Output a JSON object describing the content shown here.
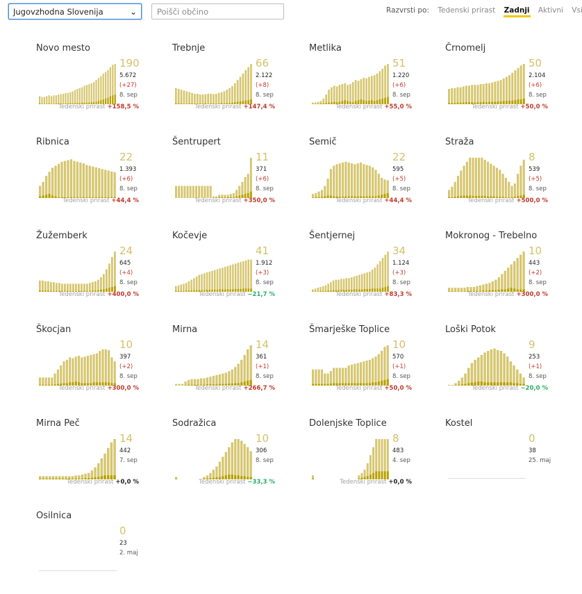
{
  "controls": {
    "region_value": "Jugovzhodna Slovenija",
    "search_placeholder": "Poišči občino",
    "sort_label": "Razvrsti po:",
    "sort_options": [
      "Tedenski prirast",
      "Zadnji",
      "Aktivni",
      "Vsi"
    ],
    "sort_active": "Zadnji"
  },
  "footer_label": "Tedenski prirast",
  "colors": {
    "bar_light": "#d6c66f",
    "bar_dark": "#b8a000",
    "number": "#d4c06a",
    "increase": "#c0392b",
    "decrease": "#27ae60"
  },
  "municipalities": [
    {
      "name": "Novo mesto",
      "active": "190",
      "total": "5.672",
      "diff": "(+27)",
      "date": "8. sep",
      "weekly": "+158,5 %",
      "trend": "up",
      "bars": [
        20,
        18,
        18,
        20,
        22,
        20,
        22,
        22,
        24,
        25,
        26,
        28,
        28,
        30,
        32,
        35,
        38,
        40,
        42,
        46,
        48,
        50,
        52,
        55,
        60,
        65,
        70,
        76,
        80,
        85,
        92,
        98,
        100
      ],
      "dark": [
        2,
        1,
        1,
        1,
        2,
        1,
        1,
        2,
        2,
        2,
        1,
        2,
        2,
        3,
        2,
        3,
        3,
        3,
        4,
        3,
        4,
        4,
        5,
        5,
        6,
        8,
        10,
        12,
        14,
        16,
        20,
        22,
        24
      ]
    },
    {
      "name": "Trebnje",
      "active": "66",
      "total": "2.122",
      "diff": "(+8)",
      "date": "8. sep",
      "weekly": "+147,4 %",
      "trend": "up",
      "bars": [
        40,
        38,
        36,
        34,
        32,
        30,
        28,
        26,
        26,
        24,
        24,
        25,
        26,
        26,
        25,
        26,
        28,
        30,
        32,
        36,
        40,
        45,
        52,
        60,
        68,
        76,
        85,
        92,
        100
      ],
      "dark": [
        2,
        2,
        2,
        1,
        1,
        2,
        2,
        1,
        1,
        2,
        1,
        2,
        1,
        2,
        2,
        1,
        2,
        3,
        2,
        3,
        3,
        4,
        5,
        6,
        7,
        8,
        9,
        10,
        12
      ]
    },
    {
      "name": "Metlika",
      "active": "51",
      "total": "1.220",
      "diff": "(+6)",
      "date": "8. sep",
      "weekly": "+55,0 %",
      "trend": "up",
      "bars": [
        4,
        4,
        6,
        8,
        14,
        24,
        36,
        42,
        46,
        44,
        48,
        50,
        52,
        48,
        50,
        55,
        60,
        58,
        62,
        66,
        64,
        68,
        70,
        72,
        76,
        82,
        88,
        96,
        100
      ],
      "dark": [
        1,
        1,
        1,
        2,
        2,
        3,
        4,
        5,
        6,
        5,
        6,
        8,
        10,
        8,
        6,
        5,
        8,
        10,
        12,
        10,
        8,
        9,
        10,
        8,
        10,
        12,
        14,
        16,
        18
      ]
    },
    {
      "name": "Črnomelj",
      "active": "50",
      "total": "2.104",
      "diff": "(+6)",
      "date": "8. sep",
      "weekly": "+50,0 %",
      "trend": "up",
      "bars": [
        38,
        40,
        40,
        42,
        42,
        44,
        46,
        46,
        48,
        48,
        48,
        50,
        50,
        52,
        52,
        54,
        56,
        58,
        60,
        64,
        68,
        72,
        78,
        84,
        90,
        96,
        100
      ],
      "dark": [
        3,
        3,
        3,
        4,
        4,
        4,
        5,
        5,
        5,
        4,
        5,
        5,
        6,
        5,
        6,
        6,
        6,
        7,
        7,
        8,
        8,
        9,
        9,
        10,
        12,
        12,
        14
      ]
    },
    {
      "name": "Ribnica",
      "active": "22",
      "total": "1.393",
      "diff": "(+6)",
      "date": "8. sep",
      "weekly": "+44,4 %",
      "trend": "up",
      "bars": [
        30,
        40,
        55,
        65,
        75,
        80,
        85,
        90,
        92,
        94,
        96,
        92,
        90,
        88,
        86,
        82,
        80,
        78,
        76,
        74,
        72,
        70,
        68,
        66,
        64
      ],
      "dark": [
        4,
        6,
        8,
        10,
        6,
        4,
        2,
        2,
        2,
        2,
        2,
        2,
        2,
        2,
        2,
        2,
        2,
        2,
        2,
        2,
        2,
        2,
        2,
        2,
        2
      ]
    },
    {
      "name": "Šentrupert",
      "active": "11",
      "total": "371",
      "diff": "(+6)",
      "date": "8. sep",
      "weekly": "+350,0 %",
      "trend": "up",
      "bars": [
        30,
        30,
        30,
        30,
        30,
        30,
        30,
        30,
        30,
        30,
        30,
        30,
        30,
        4,
        4,
        8,
        8,
        8,
        8,
        10,
        12,
        20,
        30,
        40,
        52,
        60,
        100
      ],
      "dark": [
        0,
        0,
        0,
        0,
        0,
        0,
        0,
        0,
        0,
        0,
        0,
        0,
        0,
        1,
        1,
        2,
        2,
        2,
        2,
        2,
        2,
        4,
        6,
        8,
        10,
        12,
        16
      ]
    },
    {
      "name": "Semič",
      "active": "22",
      "total": "595",
      "diff": "(+5)",
      "date": "8. sep",
      "weekly": "+44,4 %",
      "trend": "up",
      "bars": [
        10,
        12,
        16,
        20,
        30,
        48,
        72,
        80,
        84,
        86,
        88,
        90,
        88,
        86,
        84,
        86,
        88,
        84,
        82,
        80,
        76,
        70,
        60,
        50,
        46,
        44
      ],
      "dark": [
        1,
        2,
        2,
        3,
        4,
        6,
        6,
        4,
        4,
        3,
        3,
        4,
        4,
        4,
        4,
        4,
        4,
        4,
        4,
        4,
        4,
        4,
        6,
        8,
        10,
        12
      ]
    },
    {
      "name": "Straža",
      "active": "8",
      "total": "539",
      "diff": "(+5)",
      "date": "8. sep",
      "weekly": "+500,0 %",
      "trend": "up",
      "bars": [
        20,
        28,
        40,
        55,
        68,
        80,
        90,
        100,
        100,
        100,
        100,
        100,
        95,
        90,
        85,
        80,
        75,
        70,
        60,
        50,
        40,
        30,
        36,
        60,
        80,
        95
      ],
      "dark": [
        2,
        2,
        3,
        4,
        5,
        6,
        6,
        6,
        5,
        5,
        5,
        5,
        5,
        4,
        4,
        4,
        3,
        3,
        3,
        2,
        2,
        2,
        3,
        5,
        6,
        8
      ]
    },
    {
      "name": "Žužemberk",
      "active": "24",
      "total": "645",
      "diff": "(+4)",
      "date": "8. sep",
      "weekly": "+400,0 %",
      "trend": "up",
      "bars": [
        28,
        28,
        26,
        26,
        24,
        24,
        22,
        22,
        20,
        20,
        20,
        20,
        20,
        20,
        20,
        20,
        20,
        20,
        22,
        24,
        26,
        30,
        36,
        44,
        56,
        70,
        86,
        100
      ],
      "dark": [
        3,
        3,
        3,
        3,
        2,
        2,
        2,
        2,
        2,
        2,
        2,
        2,
        2,
        2,
        2,
        2,
        2,
        2,
        2,
        3,
        3,
        4,
        5,
        6,
        8,
        10,
        12,
        14
      ]
    },
    {
      "name": "Kočevje",
      "active": "41",
      "total": "1.912",
      "diff": "(+3)",
      "date": "8. sep",
      "weekly": "−21,7 %",
      "trend": "down",
      "bars": [
        14,
        16,
        18,
        20,
        22,
        26,
        30,
        34,
        38,
        42,
        44,
        46,
        48,
        50,
        52,
        54,
        56,
        58,
        60,
        62,
        64,
        66,
        68,
        70,
        72,
        74,
        76,
        78,
        80,
        80
      ],
      "dark": [
        2,
        2,
        2,
        2,
        3,
        3,
        3,
        4,
        4,
        4,
        4,
        4,
        5,
        5,
        5,
        5,
        5,
        6,
        6,
        6,
        6,
        6,
        6,
        7,
        7,
        7,
        8,
        8,
        8,
        8
      ]
    },
    {
      "name": "Šentjernej",
      "active": "34",
      "total": "1.124",
      "diff": "(+3)",
      "date": "8. sep",
      "weekly": "+83,3 %",
      "trend": "up",
      "bars": [
        6,
        8,
        10,
        12,
        14,
        16,
        20,
        24,
        28,
        30,
        30,
        32,
        32,
        34,
        34,
        36,
        38,
        40,
        42,
        44,
        46,
        48,
        50,
        55,
        60,
        68,
        76,
        84,
        92,
        100
      ],
      "dark": [
        1,
        1,
        1,
        2,
        2,
        2,
        3,
        3,
        4,
        4,
        4,
        5,
        5,
        5,
        5,
        5,
        6,
        6,
        6,
        6,
        7,
        7,
        7,
        8,
        8,
        8,
        8,
        10,
        12,
        14
      ]
    },
    {
      "name": "Mokronog - Trebelno",
      "active": "10",
      "total": "443",
      "diff": "(+2)",
      "date": "8. sep",
      "weekly": "+300,0 %",
      "trend": "up",
      "bars": [
        10,
        10,
        10,
        10,
        10,
        10,
        12,
        12,
        12,
        14,
        16,
        18,
        20,
        22,
        26,
        30,
        36,
        44,
        52,
        60,
        68,
        76,
        84,
        92,
        100
      ],
      "dark": [
        1,
        1,
        1,
        1,
        1,
        1,
        2,
        2,
        2,
        2,
        2,
        3,
        3,
        4,
        4,
        4,
        5,
        6,
        6,
        8,
        10,
        8,
        6,
        6,
        6
      ]
    },
    {
      "name": "Škocjan",
      "active": "10",
      "total": "397",
      "diff": "(+2)",
      "date": "8. sep",
      "weekly": "+300,0 %",
      "trend": "up",
      "bars": [
        20,
        20,
        20,
        20,
        20,
        30,
        40,
        50,
        60,
        64,
        70,
        68,
        72,
        74,
        70,
        72,
        74,
        76,
        78,
        80,
        86,
        90,
        90,
        88,
        70,
        60
      ],
      "dark": [
        2,
        2,
        2,
        2,
        2,
        3,
        4,
        5,
        6,
        6,
        8,
        8,
        10,
        8,
        6,
        6,
        6,
        6,
        8,
        8,
        8,
        8,
        8,
        8,
        6,
        6
      ]
    },
    {
      "name": "Mirna",
      "active": "14",
      "total": "361",
      "diff": "(+1)",
      "date": "8. sep",
      "weekly": "+266,7 %",
      "trend": "up",
      "bars": [
        4,
        4,
        4,
        10,
        14,
        16,
        16,
        16,
        18,
        18,
        20,
        22,
        24,
        26,
        28,
        30,
        32,
        36,
        40,
        46,
        54,
        64,
        76,
        90,
        100
      ],
      "dark": [
        0,
        0,
        0,
        1,
        2,
        2,
        2,
        2,
        2,
        2,
        3,
        3,
        3,
        3,
        4,
        4,
        4,
        5,
        5,
        6,
        6,
        8,
        10,
        12,
        14
      ]
    },
    {
      "name": "Šmarješke Toplice",
      "active": "10",
      "total": "570",
      "diff": "(+1)",
      "date": "8. sep",
      "weekly": "+50,0 %",
      "trend": "up",
      "bars": [
        40,
        40,
        40,
        40,
        30,
        30,
        36,
        44,
        44,
        44,
        44,
        44,
        50,
        52,
        54,
        56,
        58,
        60,
        62,
        64,
        68,
        72,
        78,
        86,
        96,
        100
      ],
      "dark": [
        4,
        4,
        4,
        4,
        4,
        4,
        5,
        6,
        6,
        6,
        6,
        6,
        6,
        6,
        6,
        6,
        6,
        6,
        6,
        6,
        8,
        8,
        10,
        12,
        14,
        16
      ]
    },
    {
      "name": "Loški Potok",
      "active": "9",
      "total": "253",
      "diff": "(+1)",
      "date": "8. sep",
      "weekly": "−20,0 %",
      "trend": "down",
      "bars": [
        2,
        2,
        6,
        12,
        20,
        30,
        44,
        56,
        64,
        70,
        76,
        82,
        86,
        90,
        92,
        88,
        86,
        80,
        72,
        60,
        50,
        40,
        30,
        20
      ],
      "dark": [
        0,
        0,
        1,
        2,
        3,
        4,
        6,
        8,
        8,
        10,
        10,
        8,
        8,
        8,
        8,
        8,
        8,
        8,
        8,
        8,
        6,
        6,
        4,
        4
      ]
    },
    {
      "name": "Mirna Peč",
      "active": "14",
      "total": "442",
      "diff": "",
      "date": "7. sep",
      "weekly": "+0,0 %",
      "trend": "zero",
      "bars": [
        8,
        8,
        8,
        8,
        8,
        8,
        8,
        8,
        8,
        8,
        8,
        10,
        10,
        12,
        14,
        16,
        22,
        30,
        40,
        52,
        64,
        78,
        92,
        100
      ],
      "dark": [
        2,
        2,
        2,
        2,
        2,
        2,
        2,
        2,
        2,
        2,
        2,
        2,
        2,
        2,
        3,
        3,
        4,
        5,
        6,
        8,
        10,
        10,
        10,
        10
      ]
    },
    {
      "name": "Sodražica",
      "active": "10",
      "total": "306",
      "diff": "",
      "date": "8. sep",
      "weekly": "−33,3 %",
      "trend": "down",
      "bars": [
        6,
        0,
        0,
        0,
        0,
        0,
        0,
        0,
        0,
        6,
        10,
        16,
        24,
        32,
        44,
        56,
        68,
        80,
        92,
        100,
        100,
        96,
        88,
        80,
        70
      ],
      "dark": [
        1,
        0,
        0,
        0,
        0,
        0,
        0,
        0,
        0,
        2,
        2,
        3,
        4,
        5,
        6,
        8,
        10,
        12,
        12,
        10,
        10,
        8,
        8,
        6,
        6
      ]
    },
    {
      "name": "Dolenjske Toplice",
      "active": "8",
      "total": "483",
      "diff": "",
      "date": "4. sep",
      "weekly": "+0,0 %",
      "trend": "zero",
      "bars": [
        10,
        0,
        0,
        0,
        0,
        0,
        0,
        0,
        0,
        0,
        0,
        0,
        0,
        0,
        0,
        0,
        10,
        16,
        24,
        40,
        60,
        80,
        100,
        100,
        100,
        100,
        100
      ],
      "dark": [
        2,
        0,
        0,
        0,
        0,
        0,
        0,
        0,
        0,
        0,
        0,
        0,
        0,
        0,
        0,
        0,
        2,
        4,
        6,
        8,
        12,
        16,
        20,
        20,
        20,
        20,
        20
      ]
    },
    {
      "name": "Kostel",
      "active": "0",
      "total": "38",
      "diff": "",
      "date": "25. maj",
      "weekly": "",
      "trend": "none",
      "bars": [],
      "dark": []
    },
    {
      "name": "Osilnica",
      "active": "0",
      "total": "23",
      "diff": "",
      "date": "2. maj",
      "weekly": "",
      "trend": "none",
      "bars": [],
      "dark": []
    }
  ]
}
